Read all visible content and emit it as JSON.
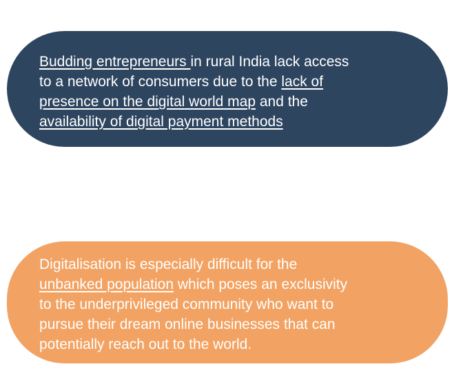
{
  "cards": [
    {
      "color": "#2e4560",
      "lines": [
        [
          {
            "text": "Budding entrepreneurs ",
            "underline": true
          },
          {
            "text": "in rural India lack access",
            "underline": false
          }
        ],
        [
          {
            "text": "to a network of consumers due to the ",
            "underline": false
          },
          {
            "text": "lack of",
            "underline": true
          }
        ],
        [
          {
            "text": "presence on the digital world map",
            "underline": true
          },
          {
            "text": " and the",
            "underline": false
          }
        ],
        [
          {
            "text": "availability of digital payment methods",
            "underline": true
          }
        ]
      ]
    },
    {
      "color": "#f2a262",
      "lines": [
        [
          {
            "text": "Digitalisation is especially difficult for the",
            "underline": false
          }
        ],
        [
          {
            "text": "unbanked population",
            "underline": true
          },
          {
            "text": " which poses an exclusivity",
            "underline": false
          }
        ],
        [
          {
            "text": "to the underprivileged community who want to",
            "underline": false
          }
        ],
        [
          {
            "text": "pursue their dream online businesses that can",
            "underline": false
          }
        ],
        [
          {
            "text": "potentially reach out to the world.",
            "underline": false
          }
        ]
      ]
    }
  ]
}
